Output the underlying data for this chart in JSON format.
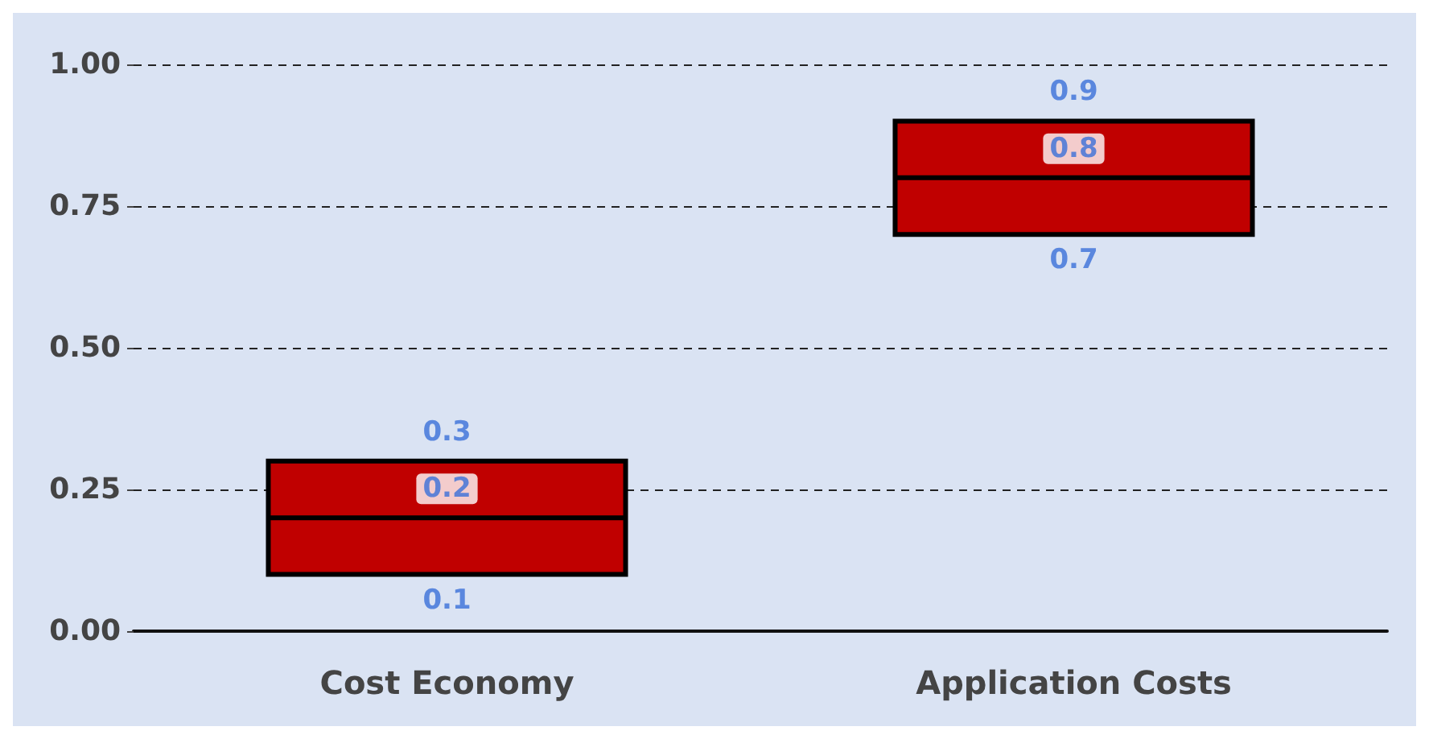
{
  "chart_data": {
    "type": "box",
    "categories": [
      "Cost Economy",
      "Application Costs"
    ],
    "boxes": [
      {
        "low": 0.1,
        "q1": 0.1,
        "median": 0.2,
        "q3": 0.3,
        "high": 0.3
      },
      {
        "low": 0.7,
        "q1": 0.7,
        "median": 0.8,
        "q3": 0.9,
        "high": 0.9
      }
    ],
    "color": "#c00000",
    "ylim": [
      0,
      1
    ],
    "yticks": [
      {
        "value": 0,
        "label": "0.00"
      },
      {
        "value": 0.25,
        "label": "0.25"
      },
      {
        "value": 0.5,
        "label": "0.50"
      },
      {
        "value": 0.75,
        "label": "0.75"
      },
      {
        "value": 1,
        "label": "1.00"
      }
    ],
    "grid": "y",
    "annotations": [
      {
        "text": "0.3",
        "x": "Cost Economy",
        "y": 0.3
      },
      {
        "text": "0.2",
        "x": "Cost Economy",
        "y": 0.2
      },
      {
        "text": "0.1",
        "x": "Cost Economy",
        "y": 0.1
      },
      {
        "text": "0.9",
        "x": "Application Costs",
        "y": 0.9
      },
      {
        "text": "0.8",
        "x": "Application Costs",
        "y": 0.8
      },
      {
        "text": "0.7",
        "x": "Application Costs",
        "y": 0.7
      }
    ]
  }
}
